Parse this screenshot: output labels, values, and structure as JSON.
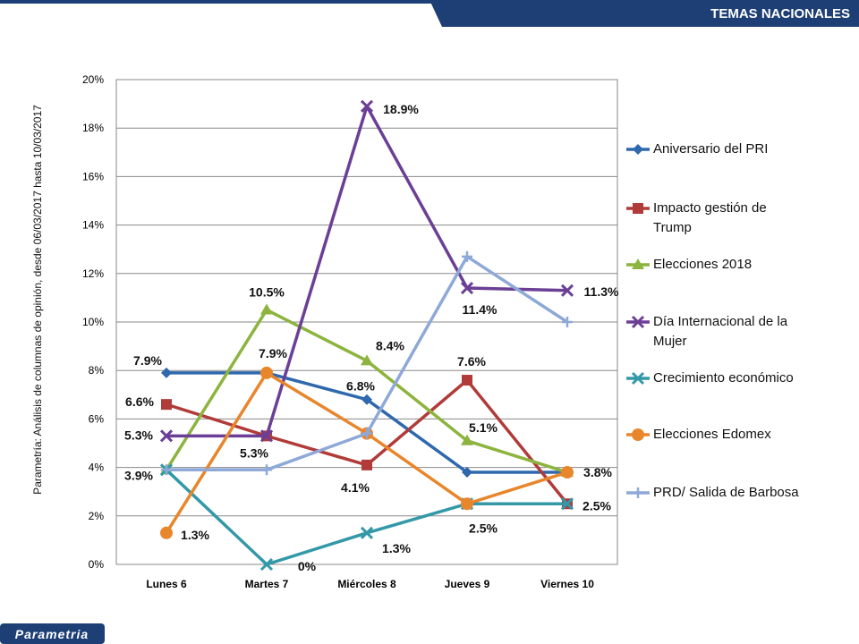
{
  "header": {
    "title": "TEMAS NACIONALES",
    "logo": "Parametria"
  },
  "chart_data": {
    "type": "line",
    "source_note": "Parametría: Análisis de columnas de opinión, desde 06/03/2017 hasta 10/03/2017",
    "categories": [
      "Lunes 6",
      "Martes 7",
      "Miércoles 8",
      "Jueves 9",
      "Viernes 10"
    ],
    "ylim": [
      0,
      20
    ],
    "yticks": [
      {
        "value": 0,
        "label": "0%"
      },
      {
        "value": 2,
        "label": "2%"
      },
      {
        "value": 4,
        "label": "4%"
      },
      {
        "value": 6,
        "label": "6%"
      },
      {
        "value": 8,
        "label": "8%"
      },
      {
        "value": 10,
        "label": "10%"
      },
      {
        "value": 12,
        "label": "12%"
      },
      {
        "value": 14,
        "label": "14%"
      },
      {
        "value": 16,
        "label": "16%"
      },
      {
        "value": 18,
        "label": "18%"
      },
      {
        "value": 20,
        "label": "20%"
      }
    ],
    "grid": true,
    "legend": "right",
    "series": [
      {
        "name": "Aniversario del PRI",
        "color": "#2f68ad",
        "marker": "diamond",
        "values": [
          7.9,
          7.9,
          6.8,
          3.8,
          3.8
        ],
        "value_labels": [
          "7.9%",
          null,
          "6.8%",
          null,
          "3.8%"
        ]
      },
      {
        "name": "Impacto gestión de Trump",
        "color": "#b03b39",
        "marker": "square",
        "values": [
          6.6,
          5.3,
          4.1,
          7.6,
          2.5
        ],
        "value_labels": [
          "6.6%",
          null,
          "4.1%",
          "7.6%",
          "2.5%"
        ]
      },
      {
        "name": "Elecciones 2018",
        "color": "#8cb43e",
        "marker": "triangle",
        "values": [
          3.9,
          10.5,
          8.4,
          5.1,
          3.8
        ],
        "value_labels": [
          "3.9%",
          "10.5%",
          "8.4%",
          "5.1%",
          null
        ]
      },
      {
        "name": "Día Internacional de la Mujer",
        "color": "#6b3f95",
        "marker": "x",
        "values": [
          5.3,
          5.3,
          18.9,
          11.4,
          11.3
        ],
        "value_labels": [
          "5.3%",
          "5.3%",
          "18.9%",
          "11.4%",
          "11.3%"
        ]
      },
      {
        "name": "Crecimiento económico",
        "color": "#3398a8",
        "marker": "x",
        "values": [
          3.9,
          0,
          1.3,
          2.5,
          2.5
        ],
        "value_labels": [
          null,
          "0%",
          "1.3%",
          null,
          null
        ]
      },
      {
        "name": "Elecciones Edomex",
        "color": "#e8862c",
        "marker": "circle",
        "values": [
          1.3,
          7.9,
          5.4,
          2.5,
          3.8
        ],
        "value_labels": [
          "1.3%",
          "7.9%",
          null,
          "2.5%",
          null
        ]
      },
      {
        "name": "PRD/ Salida de Barbosa",
        "color": "#8ea9d8",
        "marker": "plus",
        "values": [
          3.9,
          3.9,
          5.4,
          12.7,
          10.0
        ]
      }
    ]
  }
}
